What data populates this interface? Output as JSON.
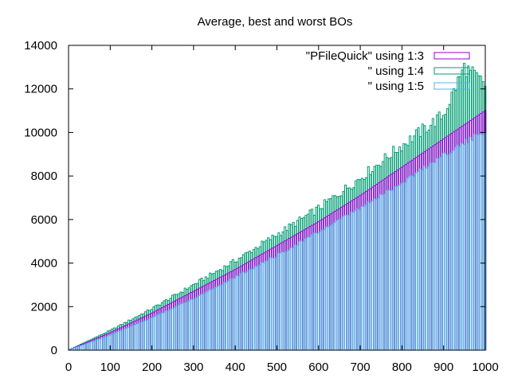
{
  "chart_data": {
    "type": "bar",
    "title": "Average, best and worst BOs",
    "xlabel": "",
    "ylabel": "",
    "xlim": [
      0,
      1000
    ],
    "ylim": [
      0,
      14000
    ],
    "xticks": [
      "0",
      "100",
      "200",
      "300",
      "400",
      "500",
      "600",
      "700",
      "800",
      "900",
      "1000"
    ],
    "yticks": [
      "0",
      "2000",
      "4000",
      "6000",
      "8000",
      "10000",
      "12000",
      "14000"
    ],
    "grid": false,
    "legend_position": "top-right",
    "bin_width": 5,
    "series": [
      {
        "name": "\"PFileQuick\" using 1:3",
        "color": "#9400d3",
        "model": "linear",
        "points": [
          [
            0,
            0
          ],
          [
            100,
            800
          ],
          [
            200,
            1700
          ],
          [
            300,
            2700
          ],
          [
            400,
            3700
          ],
          [
            500,
            4800
          ],
          [
            600,
            5900
          ],
          [
            700,
            7100
          ],
          [
            800,
            8400
          ],
          [
            900,
            9700
          ],
          [
            1000,
            11000
          ]
        ]
      },
      {
        "name": "\" using 1:4",
        "color": "#009e73",
        "model": "envelope_high",
        "points": [
          [
            0,
            0
          ],
          [
            100,
            900
          ],
          [
            200,
            1900
          ],
          [
            300,
            3000
          ],
          [
            400,
            4100
          ],
          [
            500,
            5300
          ],
          [
            600,
            6500
          ],
          [
            700,
            7900
          ],
          [
            800,
            9400
          ],
          [
            900,
            10800
          ],
          [
            950,
            13000
          ],
          [
            1000,
            12200
          ]
        ]
      },
      {
        "name": "\" using 1:5",
        "color": "#56b4e9",
        "model": "envelope_low",
        "points": [
          [
            0,
            0
          ],
          [
            100,
            700
          ],
          [
            200,
            1500
          ],
          [
            300,
            2400
          ],
          [
            400,
            3400
          ],
          [
            500,
            4400
          ],
          [
            600,
            5500
          ],
          [
            700,
            6600
          ],
          [
            800,
            7800
          ],
          [
            900,
            9100
          ],
          [
            1000,
            10200
          ]
        ]
      }
    ]
  }
}
